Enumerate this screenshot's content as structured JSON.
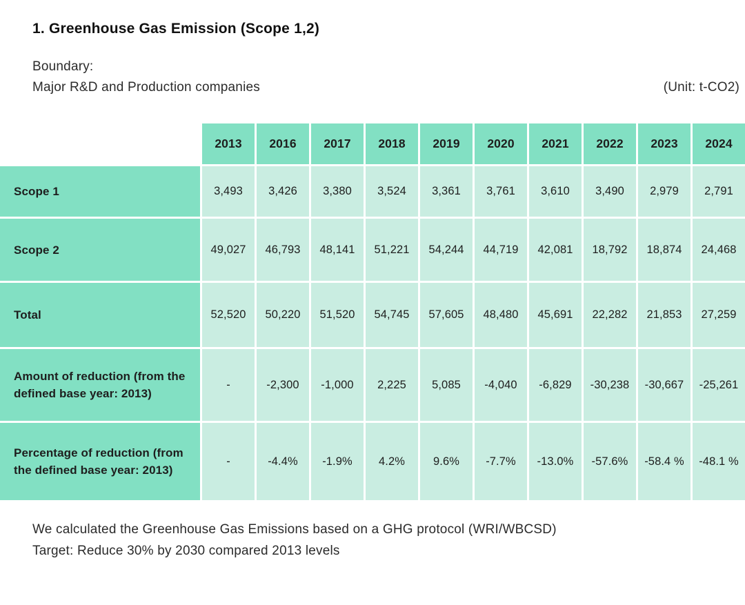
{
  "page": {
    "title": "1. Greenhouse Gas Emission (Scope 1,2)",
    "boundary_label": "Boundary:",
    "boundary_value": "Major R&D and Production companies",
    "unit_note": "(Unit: t-CO2)",
    "footnote_line1": "We calculated the Greenhouse Gas Emissions based on a GHG protocol (WRI/WBCSD)",
    "footnote_line2": "Target: Reduce 30% by 2030 compared 2013 levels"
  },
  "colors": {
    "header_cell": "#82e0c3",
    "data_cell": "#c9ede1",
    "text": "#1e1e1e"
  },
  "chart_data": {
    "type": "table",
    "unit": "t-CO2",
    "columns": [
      "2013",
      "2016",
      "2017",
      "2018",
      "2019",
      "2020",
      "2021",
      "2022",
      "2023",
      "2024"
    ],
    "rows": [
      {
        "label": "Scope 1",
        "values": [
          "3,493",
          "3,426",
          "3,380",
          "3,524",
          "3,361",
          "3,761",
          "3,610",
          "3,490",
          "2,979",
          "2,791"
        ]
      },
      {
        "label": "Scope 2",
        "values": [
          "49,027",
          "46,793",
          "48,141",
          "51,221",
          "54,244",
          "44,719",
          "42,081",
          "18,792",
          "18,874",
          "24,468"
        ]
      },
      {
        "label": "Total",
        "values": [
          "52,520",
          "50,220",
          "51,520",
          "54,745",
          "57,605",
          "48,480",
          "45,691",
          "22,282",
          "21,853",
          "27,259"
        ]
      },
      {
        "label": "Amount of reduction (from the defined base year: 2013)",
        "values": [
          "-",
          "-2,300",
          "-1,000",
          "2,225",
          "5,085",
          "-4,040",
          "-6,829",
          "-30,238",
          "-30,667",
          "-25,261"
        ]
      },
      {
        "label": "Percentage of reduction (from the defined base year: 2013)",
        "values": [
          "-",
          "-4.4%",
          "-1.9%",
          "4.2%",
          "9.6%",
          "-7.7%",
          "-13.0%",
          "-57.6%",
          "-58.4 %",
          "-48.1 %"
        ]
      }
    ]
  }
}
